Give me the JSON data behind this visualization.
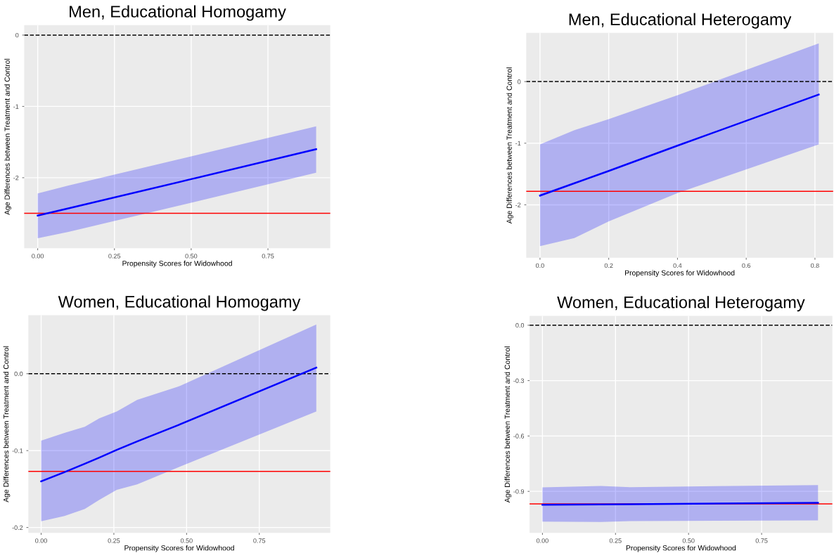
{
  "chart_data": [
    {
      "type": "line",
      "title": "Men, Educational Homogamy",
      "xlabel": "Propensity Scores for Widowhood",
      "ylabel": "Age Differences between Treatment and Control",
      "xlim": [
        -0.044,
        0.953
      ],
      "ylim": [
        -2.99,
        0.14
      ],
      "xticks": [
        {
          "value": 0,
          "label": "0.00"
        },
        {
          "value": 0.25,
          "label": "0.25"
        },
        {
          "value": 0.5,
          "label": "0.50"
        },
        {
          "value": 0.75,
          "label": "0.75"
        }
      ],
      "yticks": [
        0,
        -1,
        -2
      ],
      "grid": true,
      "marker": "none",
      "line_style": "solid",
      "series": [
        {
          "color": "#0000ff",
          "x": [
            0,
            0.1,
            0.5,
            0.907
          ],
          "values": [
            -2.53,
            -2.43,
            -2.02,
            -1.6
          ],
          "lower": [
            -2.85,
            -2.76,
            -2.35,
            -1.93
          ],
          "upper": [
            -2.22,
            -2.11,
            -1.7,
            -1.28
          ]
        }
      ],
      "ref_lines": [
        {
          "axis": "y",
          "value": 0,
          "color": "#000000",
          "line_style": "dashed"
        },
        {
          "axis": "y",
          "value": -2.5,
          "color": "#ff0000",
          "line_style": "solid"
        }
      ]
    },
    {
      "type": "line",
      "title": "Men, Educational Heterogamy",
      "xlabel": "Propensity Scores for Widowhood",
      "ylabel": "Age Differences between Treatment and Control",
      "xlim": [
        -0.04,
        0.853
      ],
      "ylim": [
        -2.86,
        0.79
      ],
      "xticks": [
        {
          "value": 0,
          "label": "0.0"
        },
        {
          "value": 0.2,
          "label": "0.2"
        },
        {
          "value": 0.4,
          "label": "0.4"
        },
        {
          "value": 0.6,
          "label": "0.6"
        },
        {
          "value": 0.8,
          "label": "0.8"
        }
      ],
      "yticks": [
        0,
        -1,
        -2
      ],
      "grid": true,
      "marker": "none",
      "line_style": "solid",
      "series": [
        {
          "color": "#0000ff",
          "x": [
            0,
            0.1,
            0.2,
            0.4,
            0.811
          ],
          "values": [
            -1.85,
            -1.65,
            -1.45,
            -1.04,
            -0.21
          ],
          "lower": [
            -2.67,
            -2.54,
            -2.27,
            -1.81,
            -1.02
          ],
          "upper": [
            -1.02,
            -0.79,
            -0.61,
            -0.22,
            0.62
          ]
        }
      ],
      "ref_lines": [
        {
          "axis": "y",
          "value": 0,
          "color": "#000000",
          "line_style": "dashed"
        },
        {
          "axis": "y",
          "value": -1.78,
          "color": "#ff0000",
          "line_style": "solid"
        }
      ]
    },
    {
      "type": "line",
      "title": "Women, Educational Homogamy",
      "xlabel": "Propensity Scores for Widowhood",
      "ylabel": "Age Differences between Treatment and Control",
      "xlim": [
        -0.044,
        0.994
      ],
      "ylim": [
        -0.207,
        0.076
      ],
      "xticks": [
        {
          "value": 0,
          "label": "0.00"
        },
        {
          "value": 0.25,
          "label": "0.25"
        },
        {
          "value": 0.5,
          "label": "0.50"
        },
        {
          "value": 0.75,
          "label": "0.75"
        }
      ],
      "yticks": [
        {
          "value": 0,
          "label": "0.0"
        },
        -0.1,
        -0.2
      ],
      "grid": true,
      "marker": "none",
      "line_style": "solid",
      "series": [
        {
          "color": "#0000ff",
          "x": [
            0,
            0.08,
            0.15,
            0.2,
            0.26,
            0.33,
            0.47,
            0.946
          ],
          "values": [
            -0.14,
            -0.128,
            -0.117,
            -0.109,
            -0.099,
            -0.088,
            -0.067,
            0.008
          ],
          "lower": [
            -0.192,
            -0.185,
            -0.176,
            -0.164,
            -0.151,
            -0.144,
            -0.122,
            -0.049
          ],
          "upper": [
            -0.087,
            -0.077,
            -0.069,
            -0.058,
            -0.049,
            -0.034,
            -0.017,
            0.064
          ]
        }
      ],
      "ref_lines": [
        {
          "axis": "y",
          "value": 0,
          "color": "#000000",
          "line_style": "dashed"
        },
        {
          "axis": "y",
          "value": -0.127,
          "color": "#ff0000",
          "line_style": "solid"
        }
      ]
    },
    {
      "type": "line",
      "title": "Women, Educational Heterogamy",
      "xlabel": "Propensity Scores for Widowhood",
      "ylabel": "Age Differences between Treatment and Control",
      "xlim": [
        -0.044,
        0.992
      ],
      "ylim": [
        -1.125,
        0.051
      ],
      "xticks": [
        {
          "value": 0,
          "label": "0.00"
        },
        {
          "value": 0.25,
          "label": "0.25"
        },
        {
          "value": 0.5,
          "label": "0.50"
        },
        {
          "value": 0.75,
          "label": "0.75"
        }
      ],
      "yticks": [
        {
          "value": 0,
          "label": "0.0"
        },
        -0.3,
        -0.6,
        -0.9
      ],
      "grid": true,
      "marker": "none",
      "line_style": "solid",
      "series": [
        {
          "color": "#0000ff",
          "x": [
            0,
            0.2,
            0.3,
            0.943
          ],
          "values": [
            -0.973,
            -0.971,
            -0.97,
            -0.962
          ],
          "lower": [
            -1.064,
            -1.066,
            -1.061,
            -1.057
          ],
          "upper": [
            -0.878,
            -0.871,
            -0.877,
            -0.866
          ]
        }
      ],
      "ref_lines": [
        {
          "axis": "y",
          "value": 0,
          "color": "#000000",
          "line_style": "dashed"
        },
        {
          "axis": "y",
          "value": -0.968,
          "color": "#ff0000",
          "line_style": "solid"
        }
      ]
    }
  ]
}
